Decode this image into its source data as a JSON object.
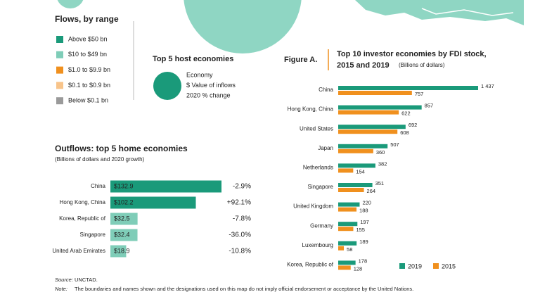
{
  "flows_legend": {
    "title": "Flows, by range",
    "items": [
      {
        "label": "Above $50 bn",
        "color": "#1a9a7a"
      },
      {
        "label": "$10 to $49 bn",
        "color": "#7fcdb8"
      },
      {
        "label": "$1.0 to $9.9 bn",
        "color": "#f0901e"
      },
      {
        "label": "$0.1 to $0.9 bn",
        "color": "#f8c48a"
      },
      {
        "label": "Below $0.1 bn",
        "color": "#9a9a9a"
      }
    ]
  },
  "host_legend": {
    "title": "Top 5 host economies",
    "lines": [
      "Economy",
      "$ Value of inflows",
      "2020 % change"
    ]
  },
  "chart_data": [
    {
      "type": "bar",
      "title": "Outflows: top 5 home economies",
      "subtitle": "(Billions of dollars and 2020 growth)",
      "categories": [
        "China",
        "Hong Kong, China",
        "Korea, Republic of",
        "Singapore",
        "United Arab Emirates"
      ],
      "values": [
        132.9,
        102.2,
        32.5,
        32.4,
        18.9
      ],
      "value_labels": [
        "$132.9",
        "$102.2",
        "$32.5",
        "$32.4",
        "$18.9"
      ],
      "colors": [
        "#1a9a7a",
        "#1a9a7a",
        "#7fcdb8",
        "#7fcdb8",
        "#7fcdb8"
      ],
      "changes": [
        -2.9,
        92.1,
        -7.8,
        -36.0,
        -10.8
      ],
      "change_labels": [
        "-2.9%",
        "+92.1%",
        "-7.8%",
        "-36.0%",
        "-10.8%"
      ]
    },
    {
      "type": "bar",
      "figure_label": "Figure A.",
      "title_lines": [
        "Top 10 investor economies by FDI stock,",
        "2015 and 2019"
      ],
      "subtitle": "(Billions of dollars)",
      "categories": [
        "China",
        "Hong Kong, China",
        "United States",
        "Japan",
        "Netherlands",
        "Singapore",
        "United Kingdom",
        "Germany",
        "Luxembourg",
        "Korea, Republic of"
      ],
      "series": [
        {
          "name": "2019",
          "color": "#1a9a7a",
          "values": [
            1437,
            857,
            692,
            507,
            382,
            351,
            220,
            197,
            189,
            178
          ],
          "value_labels": [
            "1 437",
            "857",
            "692",
            "507",
            "382",
            "351",
            "220",
            "197",
            "189",
            "178"
          ]
        },
        {
          "name": "2015",
          "color": "#f0901e",
          "values": [
            757,
            622,
            608,
            360,
            154,
            264,
            188,
            155,
            58,
            128
          ]
        }
      ]
    }
  ],
  "source_label": "Source:",
  "source": "UNCTAD.",
  "note_label": "Note:",
  "note": "The boundaries and names shown and the designations used on this map do not imply official endorsement or acceptance by the United Nations."
}
